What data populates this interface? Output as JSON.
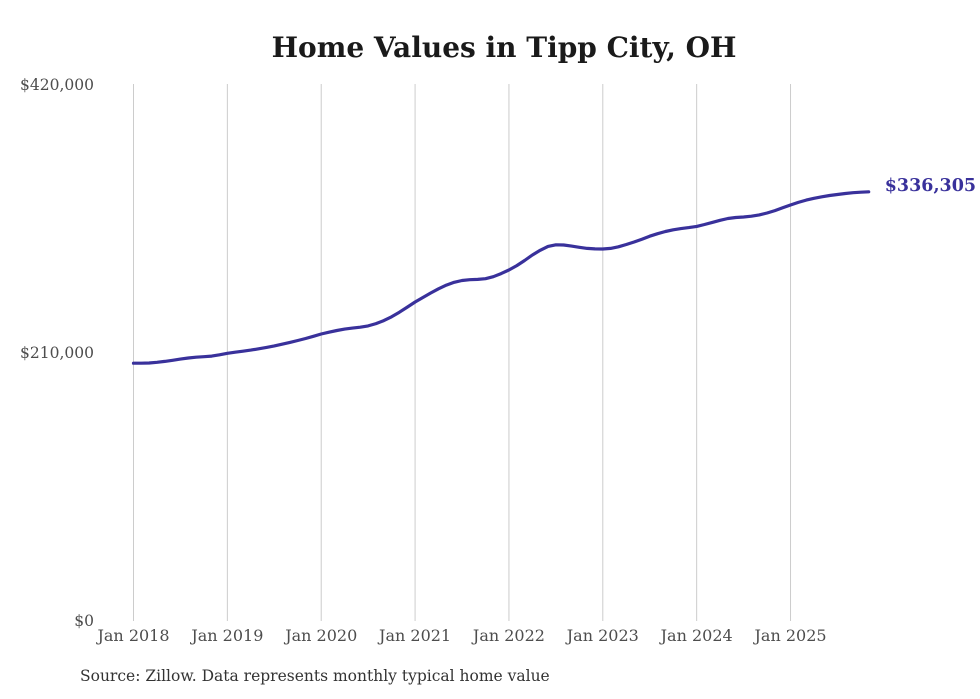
{
  "chart_data": {
    "type": "line",
    "title": "Home Values in Tipp City, OH",
    "xlabel": "",
    "ylabel": "",
    "ylim": [
      0,
      420000
    ],
    "grid": "vertical-only",
    "legend": "none",
    "line_color": "#39319b",
    "grid_color": "#cccccc",
    "x_ticks": [
      "Jan 2018",
      "Jan 2019",
      "Jan 2020",
      "Jan 2021",
      "Jan 2022",
      "Jan 2023",
      "Jan 2024",
      "Jan 2025"
    ],
    "y_ticks": [
      {
        "label": "$420,000",
        "value": 420000
      },
      {
        "label": "$210,000",
        "value": 210000
      },
      {
        "label": "$0",
        "value": 0
      }
    ],
    "end_label": "$336,305",
    "latest_value": 336305,
    "series": [
      {
        "name": "Typical home value",
        "frequency": "monthly",
        "start_month": "2018-01",
        "end_month": "2025-11",
        "values": [
          202000,
          202000,
          202200,
          202700,
          203400,
          204300,
          205200,
          206100,
          206700,
          207100,
          207600,
          208600,
          209800,
          210600,
          211400,
          212300,
          213300,
          214400,
          215600,
          216900,
          218300,
          219800,
          221400,
          223100,
          224900,
          226300,
          227600,
          228700,
          229500,
          230200,
          231200,
          233000,
          235400,
          238400,
          242000,
          246000,
          250000,
          253500,
          257000,
          260300,
          263200,
          265400,
          266800,
          267400,
          267700,
          268200,
          269800,
          272200,
          275000,
          278500,
          282500,
          286800,
          290500,
          293500,
          294800,
          294600,
          293800,
          292800,
          292000,
          291600,
          291500,
          292000,
          293200,
          295000,
          297000,
          299200,
          301500,
          303500,
          305200,
          306500,
          307500,
          308300,
          309200,
          310700,
          312300,
          314000,
          315400,
          316200,
          316600,
          317200,
          318200,
          319700,
          321600,
          323800,
          326000,
          328000,
          329800,
          331200,
          332400,
          333400,
          334200,
          335000,
          335600,
          336000,
          336305
        ]
      }
    ]
  },
  "footer": {
    "source": "Source: Zillow. Data represents monthly typical home value"
  }
}
